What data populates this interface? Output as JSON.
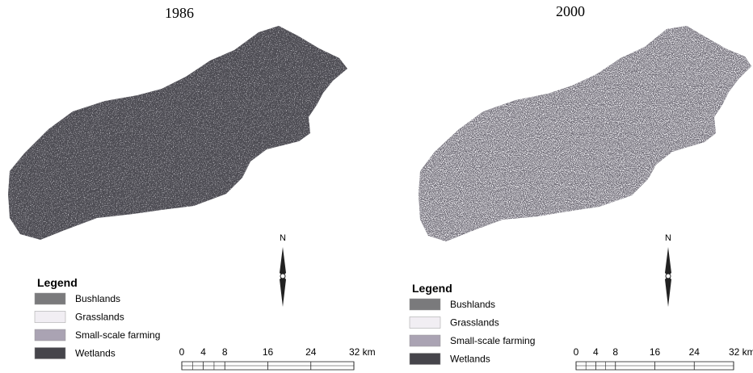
{
  "panels": [
    {
      "title": "1986",
      "north": "N",
      "legend": {
        "title": "Legend",
        "items": [
          {
            "label": "Bushlands",
            "color": "#7a7a7c"
          },
          {
            "label": "Grasslands",
            "color": "#f1eef3"
          },
          {
            "label": "Small-scale farming",
            "color": "#aaa3b3"
          },
          {
            "label": "Wetlands",
            "color": "#46454b"
          }
        ]
      },
      "scale": [
        "0",
        "4",
        "8",
        "16",
        "24",
        "32 km"
      ]
    },
    {
      "title": "2000",
      "north": "N",
      "legend": {
        "title": "Legend",
        "items": [
          {
            "label": "Bushlands",
            "color": "#7a7a7c"
          },
          {
            "label": "Grasslands",
            "color": "#f1eef3"
          },
          {
            "label": "Small-scale farming",
            "color": "#aaa3b3"
          },
          {
            "label": "Wetlands",
            "color": "#46454b"
          }
        ]
      },
      "scale": [
        "0",
        "4",
        "8",
        "16",
        "24",
        "32 km"
      ]
    }
  ]
}
